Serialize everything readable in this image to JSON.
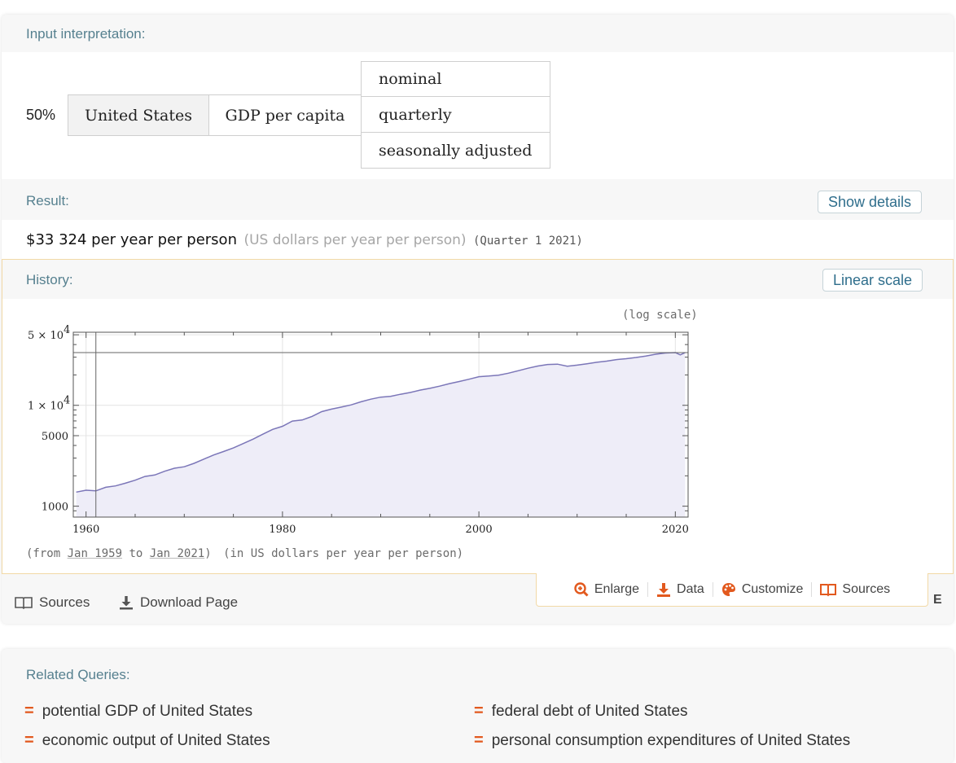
{
  "input_interpretation": {
    "label": "Input interpretation:",
    "percent": "50%",
    "entity": "United States",
    "property": "GDP per capita",
    "qualifiers": [
      "nominal",
      "quarterly",
      "seasonally adjusted"
    ]
  },
  "result": {
    "label": "Result:",
    "show_details": "Show details",
    "value": "$33 324 per year per person",
    "units": "(US dollars per year per person)",
    "period": "(Quarter 1 2021)"
  },
  "history": {
    "label": "History:",
    "scale_button": "Linear scale",
    "scale_note": "(log scale)",
    "footer_from": "(from",
    "footer_start": "Jan 1959",
    "footer_to": "to",
    "footer_end": "Jan 2021",
    "footer_close": ")",
    "footer_units": "(in US dollars per year per person)"
  },
  "chart_data": {
    "type": "area",
    "log_scale": true,
    "xlim": [
      1958.7,
      2021.3
    ],
    "ylim": [
      780,
      53000
    ],
    "x_ticks": [
      {
        "value": 1960,
        "label": "1960"
      },
      {
        "value": 1980,
        "label": "1980"
      },
      {
        "value": 2000,
        "label": "2000"
      },
      {
        "value": 2020,
        "label": "2020"
      }
    ],
    "y_ticks": [
      {
        "value": 1000,
        "label": "1000"
      },
      {
        "value": 5000,
        "label": "5000"
      },
      {
        "value": 10000,
        "label": "1 × 10",
        "exp": "4"
      },
      {
        "value": 50000,
        "label": "5 × 10",
        "exp": "4"
      }
    ],
    "reference_line_y": 33324,
    "reference_line_x": 1961,
    "grid": true,
    "series": [
      {
        "color": "#7b76b8",
        "x": [
          1959,
          1960,
          1961,
          1962,
          1963,
          1964,
          1965,
          1966,
          1967,
          1968,
          1969,
          1970,
          1971,
          1972,
          1973,
          1974,
          1975,
          1976,
          1977,
          1978,
          1979,
          1980,
          1981,
          1982,
          1983,
          1984,
          1985,
          1986,
          1987,
          1988,
          1989,
          1990,
          1991,
          1992,
          1993,
          1994,
          1995,
          1996,
          1997,
          1998,
          1999,
          2000,
          2001,
          2002,
          2003,
          2004,
          2005,
          2006,
          2007,
          2008,
          2009,
          2010,
          2011,
          2012,
          2013,
          2014,
          2015,
          2016,
          2017,
          2018,
          2019,
          2020,
          2020.5,
          2021
        ],
        "y": [
          1380,
          1440,
          1420,
          1540,
          1590,
          1690,
          1810,
          1970,
          2040,
          2220,
          2380,
          2460,
          2660,
          2930,
          3220,
          3480,
          3780,
          4180,
          4620,
          5170,
          5770,
          6200,
          6980,
          7150,
          7750,
          8650,
          9170,
          9610,
          10100,
          10830,
          11510,
          12040,
          12280,
          12860,
          13400,
          14140,
          14740,
          15480,
          16390,
          17230,
          18150,
          19200,
          19500,
          19900,
          20800,
          22000,
          23300,
          24500,
          25400,
          25600,
          24400,
          25000,
          25800,
          26700,
          27400,
          28400,
          28950,
          29800,
          30800,
          32100,
          33000,
          33300,
          31600,
          33324
        ]
      }
    ]
  },
  "toolbar": {
    "enlarge": "Enlarge",
    "data": "Data",
    "customize": "Customize",
    "sources": "Sources"
  },
  "footer": {
    "sources": "Sources",
    "download": "Download Page",
    "cut_text": "E"
  },
  "related": {
    "label": "Related Queries:",
    "items": [
      "potential GDP of United States",
      "federal debt of United States",
      "economic output of United States",
      "personal consumption expenditures of United States"
    ]
  },
  "colors": {
    "accent": "#e2591e",
    "label": "#56808f",
    "button_text": "#2f6e8c"
  }
}
